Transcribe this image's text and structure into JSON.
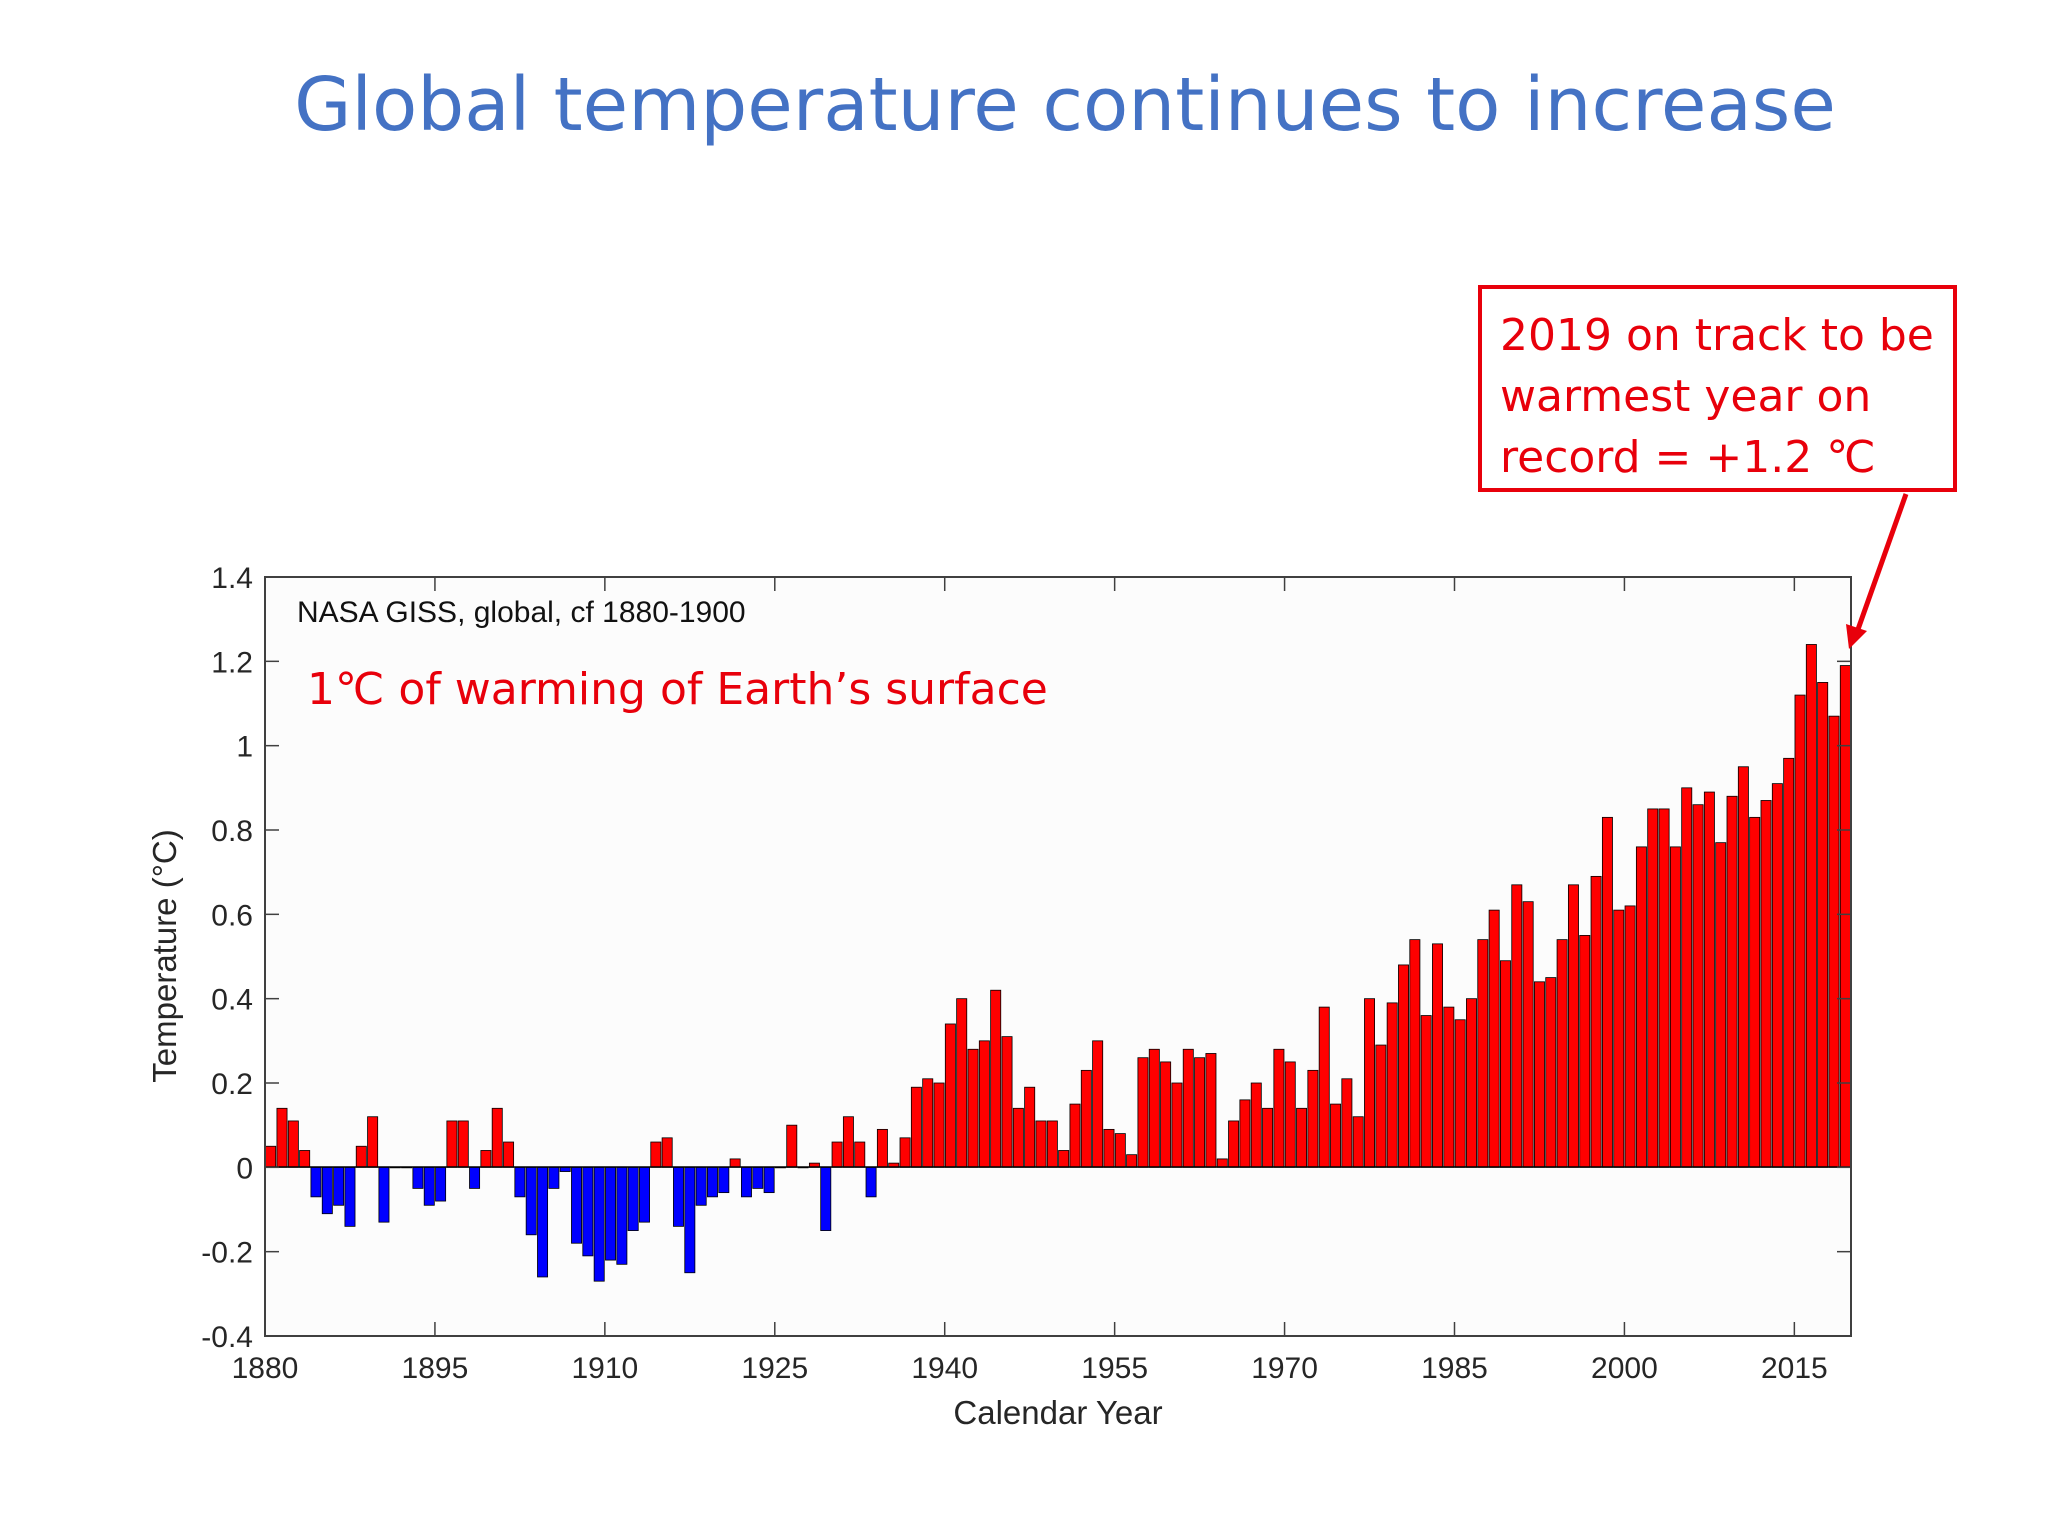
{
  "slide": {
    "title": "Global temperature continues to increase"
  },
  "callout": {
    "lines": [
      "2019 on track to be",
      "warmest year on",
      "record = +1.2 ℃"
    ],
    "color": "#e8000b"
  },
  "chart_data": {
    "type": "bar",
    "title": "NASA GISS, global, cf 1880-1900",
    "annotation": "1℃ of warming of Earth’s surface",
    "xlabel": "Calendar Year",
    "ylabel": "Temperature (°C)",
    "xlim": [
      1880,
      2019
    ],
    "ylim": [
      -0.4,
      1.4
    ],
    "xticks": [
      "1880",
      "1895",
      "1910",
      "1925",
      "1940",
      "1955",
      "1970",
      "1985",
      "2000",
      "2015"
    ],
    "yticks": [
      "-0.4",
      "-0.2",
      "0",
      "0.2",
      "0.4",
      "0.6",
      "0.8",
      "1",
      "1.2",
      "1.4"
    ],
    "grid": false,
    "colors": {
      "positive": "#ff0000",
      "negative": "#0000ff",
      "outline": "#000000"
    },
    "x": [
      1880,
      1881,
      1882,
      1883,
      1884,
      1885,
      1886,
      1887,
      1888,
      1889,
      1890,
      1891,
      1892,
      1893,
      1894,
      1895,
      1896,
      1897,
      1898,
      1899,
      1900,
      1901,
      1902,
      1903,
      1904,
      1905,
      1906,
      1907,
      1908,
      1909,
      1910,
      1911,
      1912,
      1913,
      1914,
      1915,
      1916,
      1917,
      1918,
      1919,
      1920,
      1921,
      1922,
      1923,
      1924,
      1925,
      1926,
      1927,
      1928,
      1929,
      1930,
      1931,
      1932,
      1933,
      1934,
      1935,
      1936,
      1937,
      1938,
      1939,
      1940,
      1941,
      1942,
      1943,
      1944,
      1945,
      1946,
      1947,
      1948,
      1949,
      1950,
      1951,
      1952,
      1953,
      1954,
      1955,
      1956,
      1957,
      1958,
      1959,
      1960,
      1961,
      1962,
      1963,
      1964,
      1965,
      1966,
      1967,
      1968,
      1969,
      1970,
      1971,
      1972,
      1973,
      1974,
      1975,
      1976,
      1977,
      1978,
      1979,
      1980,
      1981,
      1982,
      1983,
      1984,
      1985,
      1986,
      1987,
      1988,
      1989,
      1990,
      1991,
      1992,
      1993,
      1994,
      1995,
      1996,
      1997,
      1998,
      1999,
      2000,
      2001,
      2002,
      2003,
      2004,
      2005,
      2006,
      2007,
      2008,
      2009,
      2010,
      2011,
      2012,
      2013,
      2014,
      2015,
      2016,
      2017,
      2018,
      2019
    ],
    "values": [
      0.05,
      0.14,
      0.11,
      0.04,
      -0.07,
      -0.11,
      -0.09,
      -0.14,
      0.05,
      0.12,
      -0.13,
      0.0,
      0.0,
      -0.05,
      -0.09,
      -0.08,
      0.11,
      0.11,
      -0.05,
      0.04,
      0.14,
      0.06,
      -0.07,
      -0.16,
      -0.26,
      -0.05,
      -0.01,
      -0.18,
      -0.21,
      -0.27,
      -0.22,
      -0.23,
      -0.15,
      -0.13,
      0.06,
      0.07,
      -0.14,
      -0.25,
      -0.09,
      -0.07,
      -0.06,
      0.02,
      -0.07,
      -0.05,
      -0.06,
      0.0,
      0.1,
      0.0,
      0.01,
      -0.15,
      0.06,
      0.12,
      0.06,
      -0.07,
      0.09,
      0.01,
      0.07,
      0.19,
      0.21,
      0.2,
      0.34,
      0.4,
      0.28,
      0.3,
      0.42,
      0.31,
      0.14,
      0.19,
      0.11,
      0.11,
      0.04,
      0.15,
      0.23,
      0.3,
      0.09,
      0.08,
      0.03,
      0.26,
      0.28,
      0.25,
      0.2,
      0.28,
      0.26,
      0.27,
      0.02,
      0.11,
      0.16,
      0.2,
      0.14,
      0.28,
      0.25,
      0.14,
      0.23,
      0.38,
      0.15,
      0.21,
      0.12,
      0.4,
      0.29,
      0.39,
      0.48,
      0.54,
      0.36,
      0.53,
      0.38,
      0.35,
      0.4,
      0.54,
      0.61,
      0.49,
      0.67,
      0.63,
      0.44,
      0.45,
      0.54,
      0.67,
      0.55,
      0.69,
      0.83,
      0.61,
      0.62,
      0.76,
      0.85,
      0.85,
      0.76,
      0.9,
      0.86,
      0.89,
      0.77,
      0.88,
      0.95,
      0.83,
      0.87,
      0.91,
      0.97,
      1.12,
      1.24,
      1.15,
      1.07,
      1.19
    ]
  }
}
